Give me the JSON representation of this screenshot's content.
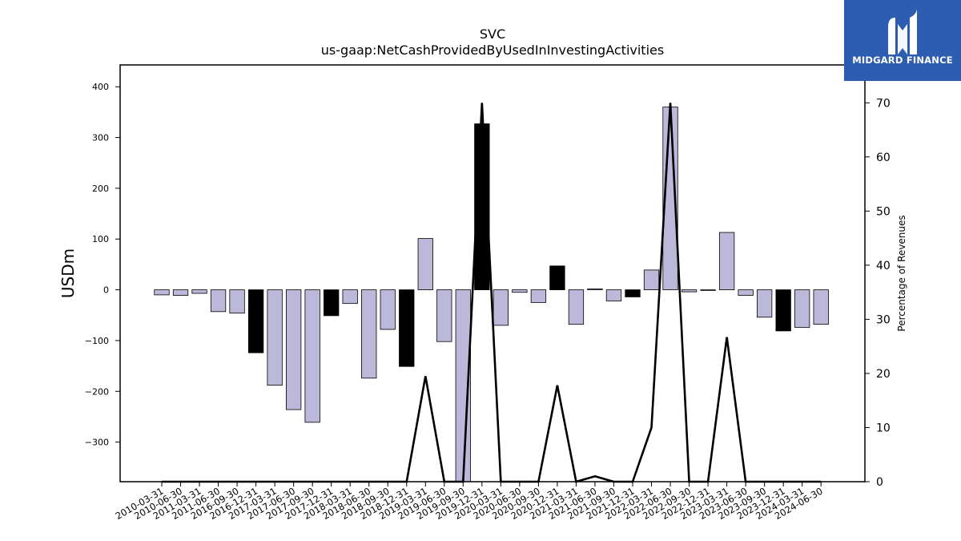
{
  "chart_data": {
    "type": "bar+line",
    "title_line1": "SVC",
    "title_line2": "us-gaap:NetCashProvidedByUsedInInvestingActivities",
    "ylabel_left": "USDm",
    "ylabel_right": "Percentage of Revenues",
    "ylim_left": [
      -378,
      443
    ],
    "ylim_right": [
      0,
      77
    ],
    "yticks_left": [
      400,
      300,
      200,
      100,
      0,
      -100,
      -200,
      -300
    ],
    "yticks_left_labels": [
      "400",
      "300",
      "200",
      "100",
      "0",
      "−100",
      "−200",
      "−300"
    ],
    "yticks_right": [
      0,
      10,
      20,
      30,
      40,
      50,
      60,
      70
    ],
    "categories": [
      "2010-03-31",
      "2010-06-30",
      "2011-03-31",
      "2011-06-30",
      "2016-09-30",
      "2016-12-31",
      "2017-03-31",
      "2017-06-30",
      "2017-09-30",
      "2017-12-31",
      "2018-03-31",
      "2018-06-30",
      "2018-09-30",
      "2018-12-31",
      "2019-03-31",
      "2019-06-30",
      "2019-09-30",
      "2019-12-31",
      "2020-03-31",
      "2020-06-30",
      "2020-09-30",
      "2020-12-31",
      "2021-03-31",
      "2021-06-30",
      "2021-09-30",
      "2021-12-31",
      "2022-03-31",
      "2022-06-30",
      "2022-09-30",
      "2022-12-31",
      "2023-03-31",
      "2023-06-30",
      "2023-09-30",
      "2023-12-31",
      "2024-03-31",
      "2024-06-30"
    ],
    "bars": [
      -10,
      -11,
      -7,
      -43,
      -46,
      -124,
      -188,
      -236,
      -261,
      -51,
      -27,
      -174,
      -78,
      -151,
      101,
      -102,
      -378,
      327,
      -70,
      -5,
      -25,
      47,
      -68,
      2,
      -22,
      -14,
      39,
      360,
      -4,
      -1,
      113,
      -11,
      -54,
      -81,
      -74,
      -68
    ],
    "bar_highlight": [
      false,
      false,
      false,
      false,
      false,
      true,
      false,
      false,
      false,
      true,
      false,
      false,
      false,
      true,
      false,
      false,
      false,
      true,
      false,
      false,
      false,
      true,
      false,
      false,
      false,
      true,
      false,
      false,
      false,
      false,
      false,
      false,
      false,
      true,
      false,
      false
    ],
    "line_pct_of_revenues": [
      0,
      0,
      0,
      0,
      0,
      0,
      0,
      0,
      0,
      0,
      0,
      0,
      0,
      0,
      19.5,
      0,
      0,
      70,
      0,
      0,
      0,
      17.8,
      0,
      1,
      0,
      0,
      10,
      70,
      0,
      0,
      26.7,
      0,
      0,
      0,
      0,
      0
    ],
    "colors": {
      "bar": "#bcb8da",
      "bar_highlight": "#000000",
      "line": "#000000",
      "edge": "#000000"
    }
  },
  "logo": {
    "text": "MIDGARD FINANCE"
  }
}
